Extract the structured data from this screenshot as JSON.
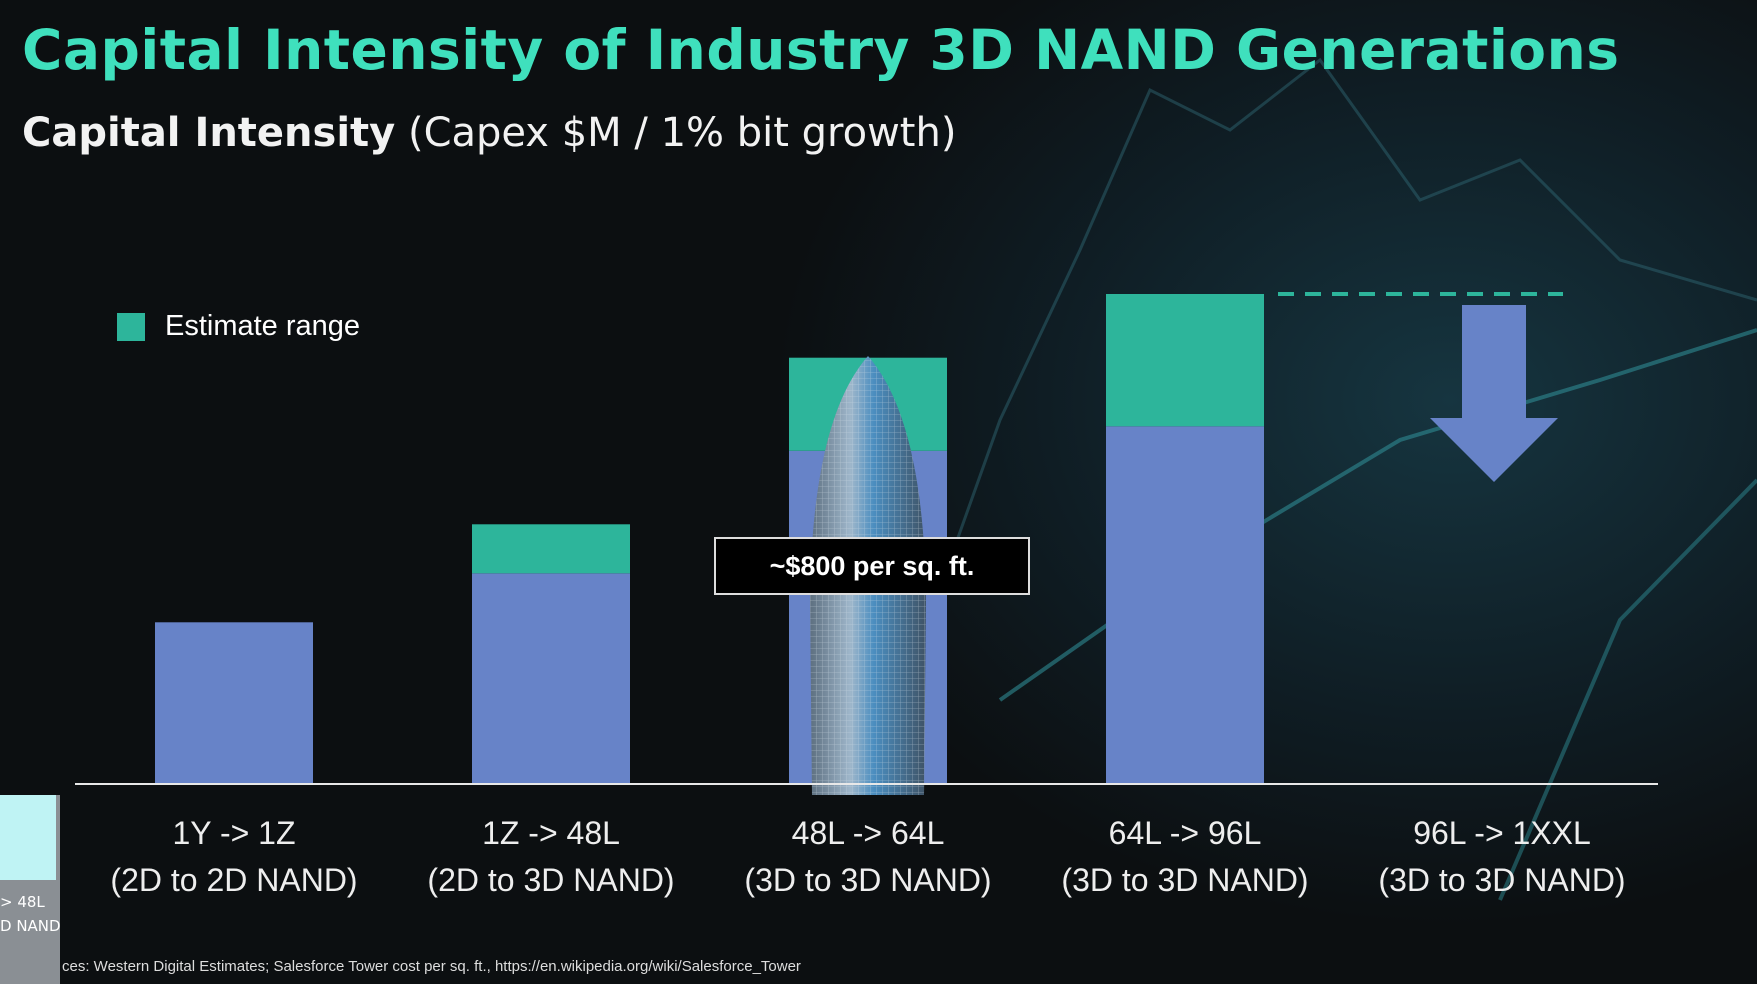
{
  "title": "Capital Intensity of Industry 3D NAND Generations",
  "subtitle": {
    "bold": "Capital Intensity",
    "rest": " (Capex $M / 1% bit growth)"
  },
  "chart_data": {
    "type": "bar",
    "stacked": true,
    "categories": [
      [
        "1Y -> 1Z",
        "(2D to 2D NAND)"
      ],
      [
        "1Z -> 48L",
        "(2D to 3D NAND)"
      ],
      [
        "48L -> 64L",
        "(3D to 3D NAND)"
      ],
      [
        "64L -> 96L",
        "(3D to 3D NAND)"
      ],
      [
        "96L -> 1XXL",
        "(3D to 3D NAND)"
      ]
    ],
    "series": [
      {
        "values": [
          33,
          43,
          68,
          73,
          null
        ],
        "color": "#6783c8"
      },
      {
        "name": "Estimate range",
        "values": [
          0,
          10,
          19,
          27,
          null
        ],
        "color": "#2db59b"
      }
    ],
    "ylim": [
      0,
      100
    ],
    "axis_labels_shown": false,
    "legend": "top-left",
    "annotations": {
      "callout": "~$800 per sq. ft.",
      "last_category": "down-arrow below dashed line at 64L->96L top",
      "image": "Salesforce Tower over 48L -> 64L bar"
    }
  },
  "footnote": "ces: Western Digital Estimates; Salesforce Tower cost per sq. ft., https://en.wikipedia.org/wiki/Salesforce_Tower",
  "thumbnail": {
    "line1": "> 48L",
    "line2": "D NAND"
  }
}
